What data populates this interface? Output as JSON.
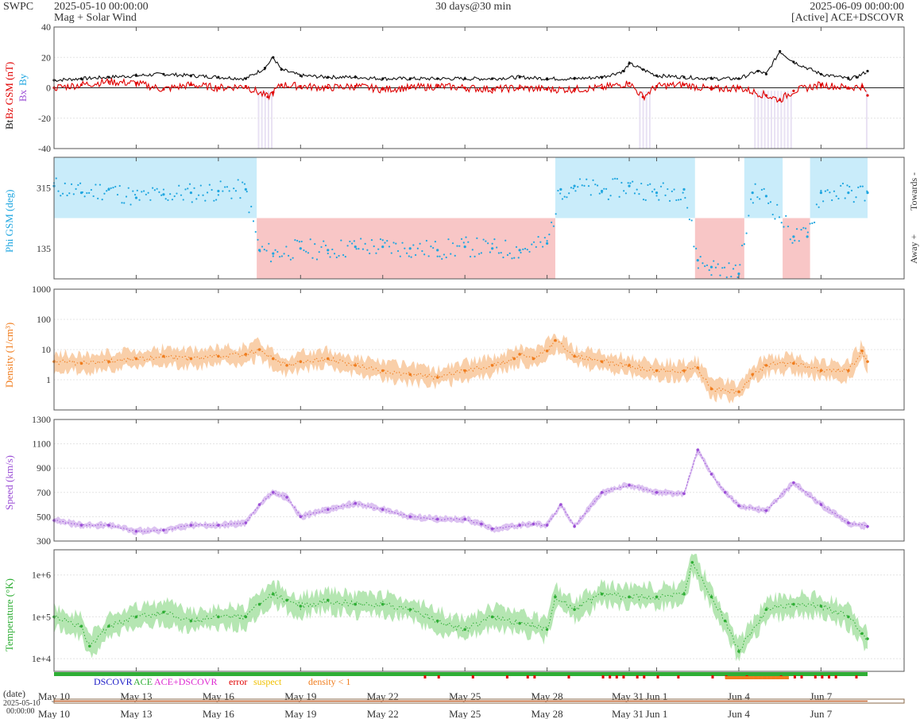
{
  "header": {
    "brand": "SWPC",
    "start_datetime": "2025-05-10 00:00:00",
    "subtitle": "Mag + Solar Wind",
    "span": "30 days@30 min",
    "end_datetime": "2025-06-09 00:00:00",
    "source": "[Active] ACE+DSCOVR"
  },
  "colors": {
    "bt": "#111111",
    "bz": "#e00000",
    "bx": "#9b4fd6",
    "by": "#1fa6e0",
    "phi": "#1fa6e0",
    "towards_bg": "#c9ecfa",
    "away_bg": "#f8c6c6",
    "bz_neg_bg": "#e2daf0",
    "density": "#f07d1e",
    "density_band": "#f8c79a",
    "speed": "#9b4fd6",
    "speed_band": "#d6b7ef",
    "temperature": "#2fae35",
    "temperature_band": "#a8e2a5",
    "dscovr": "#1b1bc6",
    "ace": "#2fae35",
    "ace_dscovr": "#dd2ad1",
    "error": "#e00000",
    "suspect": "#f0c000",
    "density_lt_1": "#f07d1e"
  },
  "chart_data": [
    {
      "type": "line",
      "panel": "magnetic field",
      "ylabel_parts": [
        "Bt",
        "Bz GSM (nT)",
        "Bx",
        "By"
      ],
      "ylim": [
        -40,
        40
      ],
      "yticks": [
        -40,
        -20,
        0,
        20,
        40
      ],
      "x_unit": "days since 2025-05-10",
      "series": [
        {
          "name": "Bt",
          "x": [
            0,
            1,
            2,
            3,
            4,
            5,
            6,
            7,
            7.7,
            8,
            8.3,
            9,
            10,
            11,
            12,
            13,
            14,
            15,
            16,
            17,
            18,
            19,
            20,
            20.8,
            21,
            21.5,
            22,
            23,
            24,
            25,
            25.7,
            26,
            26.5,
            27,
            28,
            29,
            29.3,
            29.7
          ],
          "values": [
            5,
            6,
            7,
            8,
            9,
            8,
            7,
            6,
            13,
            20,
            12,
            8,
            7,
            7,
            6,
            6,
            6,
            6,
            6,
            7,
            6,
            6,
            7,
            11,
            16,
            12,
            8,
            7,
            6,
            6,
            11,
            9,
            24,
            17,
            9,
            6,
            7,
            11
          ]
        },
        {
          "name": "Bz GSM",
          "x": [
            0,
            1,
            2,
            3,
            4,
            5,
            6,
            7,
            7.8,
            8,
            8.3,
            9,
            10,
            11,
            12,
            13,
            14,
            15,
            16,
            17,
            18,
            19,
            20,
            21,
            21.5,
            22,
            23,
            24,
            25,
            26,
            26.5,
            27,
            28,
            29,
            29.5,
            29.7
          ],
          "values": [
            0,
            2,
            4,
            3,
            -1,
            2,
            0,
            1,
            -6,
            -3,
            2,
            1,
            0,
            1,
            -1,
            0,
            1,
            0,
            -1,
            0,
            -1,
            -1,
            0,
            3,
            -6,
            1,
            2,
            -1,
            0,
            -5,
            -8,
            -2,
            2,
            0,
            1,
            -5
          ]
        }
      ]
    },
    {
      "type": "scatter",
      "panel": "phi angle",
      "ylabel": "Phi GSM (deg)",
      "yticks": [
        135,
        315
      ],
      "ylim": [
        45,
        405
      ],
      "side_labels": {
        "towards": "Towards -",
        "away": "Away +"
      },
      "x_unit": "days since 2025-05-10",
      "sectors": [
        {
          "start": 0,
          "end": 7.4,
          "sector": "towards"
        },
        {
          "start": 7.4,
          "end": 18.3,
          "sector": "away"
        },
        {
          "start": 18.3,
          "end": 23.4,
          "sector": "towards"
        },
        {
          "start": 23.4,
          "end": 25.2,
          "sector": "away"
        },
        {
          "start": 25.2,
          "end": 26.6,
          "sector": "towards"
        },
        {
          "start": 26.6,
          "end": 27.6,
          "sector": "away"
        },
        {
          "start": 27.6,
          "end": 29.7,
          "sector": "towards"
        }
      ],
      "series": [
        {
          "name": "Phi GSM",
          "x": [
            0,
            1,
            2,
            3,
            4,
            5,
            6,
            7,
            7.5,
            8,
            9,
            10,
            11,
            12,
            13,
            14,
            15,
            16,
            17,
            18,
            18.5,
            19,
            20,
            21,
            22,
            23,
            23.5,
            24,
            25,
            25.5,
            26,
            27,
            27.5,
            28,
            29,
            29.7
          ],
          "values": [
            320,
            300,
            310,
            285,
            295,
            300,
            305,
            310,
            130,
            120,
            135,
            130,
            140,
            140,
            135,
            130,
            140,
            135,
            130,
            150,
            310,
            320,
            305,
            320,
            300,
            310,
            100,
            80,
            60,
            300,
            290,
            170,
            170,
            300,
            300,
            300
          ]
        }
      ]
    },
    {
      "type": "line",
      "panel": "density",
      "ylabel": "Density (1/cm³)",
      "scale": "log",
      "ylim": [
        0.1,
        1000
      ],
      "yticks": [
        1,
        10,
        100,
        1000
      ],
      "x_unit": "days since 2025-05-10",
      "series": [
        {
          "name": "Density",
          "x": [
            0,
            1,
            2,
            3,
            4,
            5,
            6,
            7,
            7.5,
            8,
            8.5,
            9,
            10,
            11,
            12,
            13,
            14,
            15,
            16,
            16.8,
            17,
            17.5,
            18,
            18.3,
            19,
            20,
            21,
            22,
            23,
            23.5,
            24,
            25,
            25.5,
            26,
            27,
            28,
            29,
            29.5,
            29.7
          ],
          "values": [
            4,
            3.5,
            4,
            5,
            6,
            5,
            6,
            7,
            10,
            5,
            3,
            4,
            5,
            3,
            2,
            1.5,
            1.2,
            2,
            3,
            5,
            7,
            5,
            9,
            20,
            6,
            4,
            3,
            2,
            2,
            2.5,
            0.5,
            0.4,
            1.5,
            3,
            3.5,
            2,
            2,
            9,
            4
          ]
        }
      ]
    },
    {
      "type": "line",
      "panel": "speed",
      "ylabel": "Speed (km/s)",
      "ylim": [
        300,
        1300
      ],
      "yticks": [
        300,
        500,
        700,
        900,
        1100,
        1300
      ],
      "x_unit": "days since 2025-05-10",
      "series": [
        {
          "name": "Speed",
          "x": [
            0,
            1,
            2,
            3,
            4,
            5,
            6,
            7,
            7.5,
            8,
            8.5,
            9,
            10,
            11,
            12,
            13,
            14,
            15,
            15.6,
            16,
            17,
            17.5,
            18,
            18.5,
            19,
            20,
            21,
            22,
            23,
            23.5,
            24,
            24.5,
            25,
            26,
            27,
            28,
            29,
            29.7
          ],
          "values": [
            470,
            430,
            430,
            380,
            390,
            430,
            430,
            450,
            600,
            700,
            660,
            500,
            560,
            610,
            560,
            500,
            480,
            480,
            440,
            400,
            430,
            440,
            430,
            600,
            420,
            700,
            760,
            700,
            690,
            1050,
            850,
            700,
            590,
            550,
            780,
            600,
            450,
            420
          ]
        }
      ]
    },
    {
      "type": "line",
      "panel": "temperature",
      "ylabel": "Temperature (°K)",
      "scale": "log",
      "ylim": [
        5000,
        4000000
      ],
      "yticks": [
        10000,
        100000,
        1000000
      ],
      "ytick_labels": [
        "1e+4",
        "1e+5",
        "1e+6"
      ],
      "x_unit": "days since 2025-05-10",
      "series": [
        {
          "name": "Temperature",
          "x": [
            0,
            1,
            1.3,
            2,
            3,
            4,
            5,
            6,
            7,
            7.5,
            8,
            8.5,
            9,
            10,
            11,
            12,
            13,
            14,
            15,
            16,
            17,
            18,
            18.3,
            19,
            20,
            21,
            22,
            23,
            23.3,
            24,
            24.5,
            25,
            26,
            27,
            28,
            29,
            29.5,
            29.7
          ],
          "values": [
            100000,
            60000,
            20000,
            60000,
            100000,
            130000,
            80000,
            100000,
            100000,
            200000,
            350000,
            250000,
            180000,
            250000,
            200000,
            200000,
            150000,
            80000,
            50000,
            100000,
            70000,
            50000,
            300000,
            150000,
            350000,
            300000,
            300000,
            350000,
            2000000,
            300000,
            80000,
            15000,
            150000,
            200000,
            180000,
            100000,
            40000,
            30000
          ]
        }
      ]
    }
  ],
  "x_axis": {
    "date_label": "(date)",
    "start_date_label": "2025-05-10",
    "start_time_label": "00:00:00",
    "tick_labels": [
      "May 10",
      "May 13",
      "May 16",
      "May 19",
      "May 22",
      "May 25",
      "May 28",
      "May 31",
      "Jun 1",
      "Jun 4",
      "Jun 7"
    ],
    "tick_days": [
      0,
      3,
      6,
      9,
      12,
      15,
      18,
      21,
      22,
      25,
      28
    ]
  },
  "legend": {
    "dscovr": "DSCOVR",
    "ace": "ACE",
    "ace_dscovr": "ACE+DSCOVR",
    "error": "error",
    "suspect": "suspect",
    "density_lt_1": "density < 1"
  }
}
